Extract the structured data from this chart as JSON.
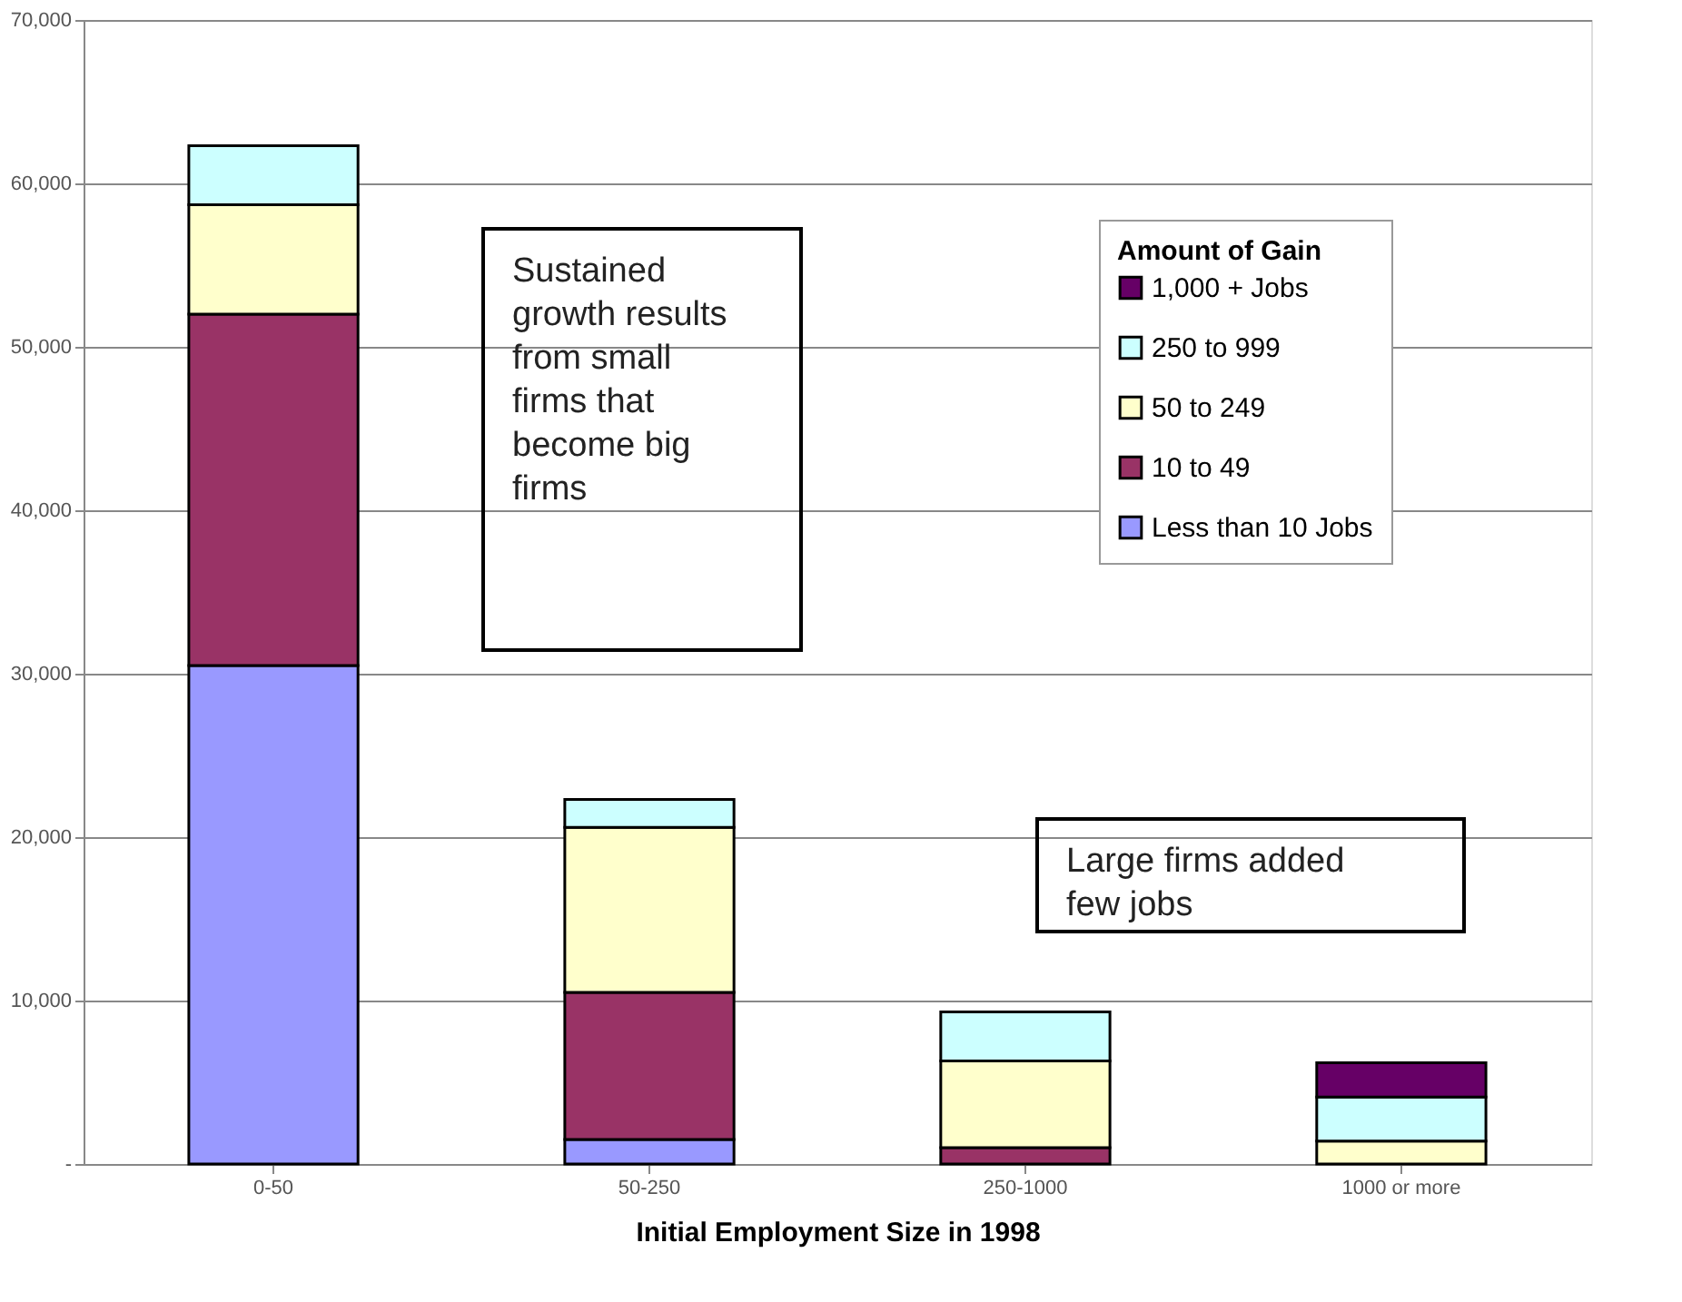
{
  "chart_data": {
    "type": "bar",
    "stacked": true,
    "xlabel": "Initial Employment Size in 1998",
    "legend_title": "Amount of Gain",
    "legend": "top right",
    "grid": "y",
    "categories": [
      "0-50",
      "50-250",
      "250-1000",
      "1000 or more"
    ],
    "series": [
      {
        "name": "Less than 10 Jobs",
        "color": "#9999ff",
        "values": [
          30500,
          1500,
          0,
          0
        ]
      },
      {
        "name": "10 to 49",
        "color": "#993366",
        "values": [
          21500,
          9000,
          1000,
          0
        ]
      },
      {
        "name": "50 to 249",
        "color": "#ffffcc",
        "values": [
          6700,
          10100,
          5300,
          1400
        ]
      },
      {
        "name": "250 to 999",
        "color": "#ccffff",
        "values": [
          3600,
          1700,
          3000,
          2700
        ]
      },
      {
        "name": "1,000 + Jobs",
        "color": "#660066",
        "values": [
          0,
          0,
          0,
          2100
        ]
      }
    ],
    "ylim": [
      0,
      70000
    ],
    "yticks": [
      {
        "value": 0,
        "label": "-"
      },
      {
        "value": 10000,
        "label": "10,000"
      },
      {
        "value": 20000,
        "label": "20,000"
      },
      {
        "value": 30000,
        "label": "30,000"
      },
      {
        "value": 40000,
        "label": "40,000"
      },
      {
        "value": 50000,
        "label": "50,000"
      },
      {
        "value": 60000,
        "label": "60,000"
      },
      {
        "value": 70000,
        "label": "70,000"
      }
    ],
    "annotations": [
      "Sustained growth results from small firms that become big firms",
      "Large firms added few jobs"
    ]
  }
}
